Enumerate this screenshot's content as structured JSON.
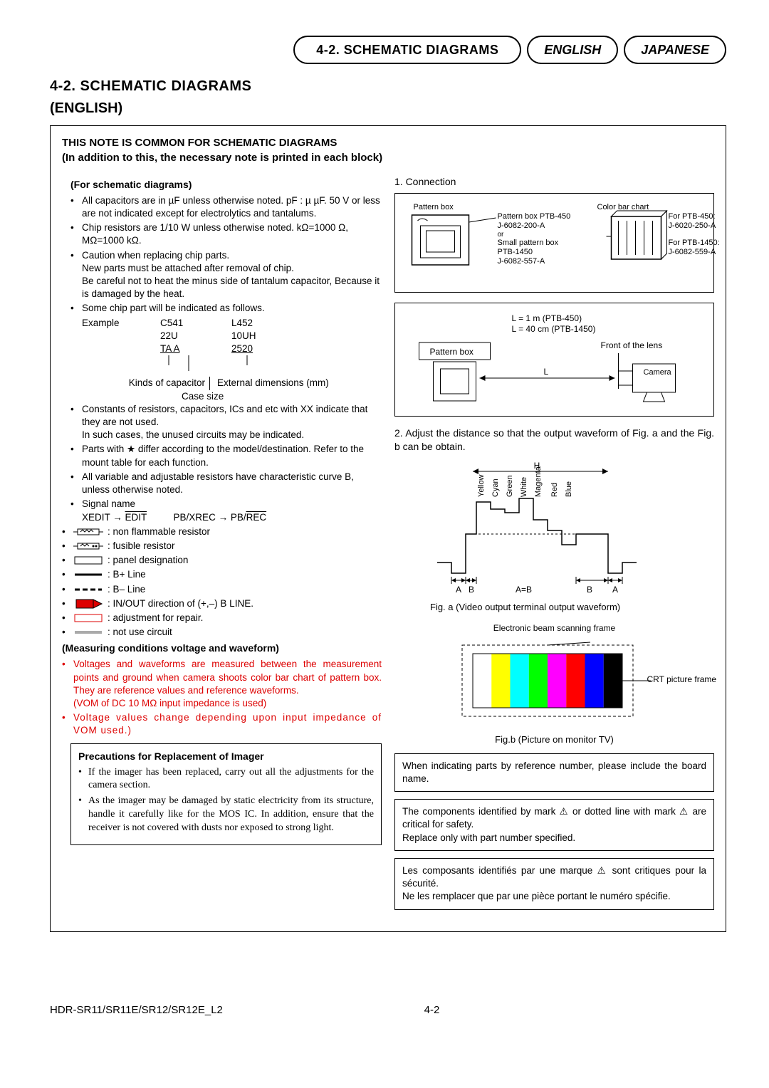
{
  "header": {
    "main_pill": "4-2. SCHEMATIC DIAGRAMS",
    "lang1": "ENGLISH",
    "lang2": "JAPANESE"
  },
  "title": "4-2.  SCHEMATIC  DIAGRAMS",
  "title_sub": "(ENGLISH)",
  "note_head": "THIS NOTE IS COMMON FOR SCHEMATIC DIAGRAMS",
  "note_sub": "(In addition to this, the necessary note is printed in each block)",
  "left": {
    "head1": "(For schematic diagrams)",
    "b1": "All capacitors are in µF unless otherwise noted. pF : µ µF.  50 V or less are not indicated except for electrolytics and tantalums.",
    "b2": "Chip resistors are 1/10 W unless otherwise noted. kΩ=1000 Ω, MΩ=1000 kΩ.",
    "b3a": "Caution when replacing chip parts.",
    "b3b": "New parts must be attached after removal of chip.",
    "b3c": "Be careful not to heat the minus side of tantalum capacitor, Because it is damaged by the heat.",
    "b4": "Some chip part will be indicated as follows.",
    "ex_label": "Example",
    "ex_c": "C541",
    "ex_l": "L452",
    "ex_22": "22U",
    "ex_10": "10UH",
    "ex_ta": "TA  A",
    "ex_25": "2520",
    "ex_k1": "Kinds of capacitor",
    "ex_k2": "External dimensions (mm)",
    "ex_k3": "Case size",
    "b5a": "Constants of resistors, capacitors, ICs and etc with XX indicate that they are not used.",
    "b5b": "In such cases, the unused circuits may be indicated.",
    "b6": "Parts with ★ differ according to the model/destination. Refer to the mount table for each function.",
    "b7": "All variable and adjustable resistors have characteristic curve B, unless otherwise noted.",
    "b8": "Signal name",
    "b8a": "XEDIT → ",
    "b8a2": "EDIT",
    "b8b": "PB/XREC → PB/",
    "b8b2": "REC",
    "b9": ": non flammable resistor",
    "b10": ": fusible resistor",
    "b11": ": panel designation",
    "b12": ": B+ Line",
    "b13": ": B– Line",
    "b14": ": IN/OUT direction of (+,–) B LINE.",
    "b15": ": adjustment for repair.",
    "b16": ": not use circuit",
    "meas_head": "(Measuring conditions voltage and waveform)",
    "m1": "Voltages and waveforms are measured between the measurement points and ground when camera shoots color bar chart of pattern box. They are reference values and reference waveforms.",
    "m1b": "(VOM of DC 10 MΩ input impedance is used)",
    "m2": "Voltage values change depending upon input impedance of VOM used.)",
    "prec_head": "Precautions for Replacement of Imager",
    "p1": "If the imager has been replaced, carry out all the adjustments for the camera section.",
    "p2": "As the imager may be damaged by static electricity from its structure, handle it carefully like for the MOS IC. In addition, ensure that the receiver is not covered with dusts nor exposed to strong light."
  },
  "right": {
    "n1": "1.  Connection",
    "d1_pattern_box": "Pattern box",
    "d1_color_chart": "Color bar chart",
    "d1_pb450": "Pattern box PTB-450",
    "d1_j1": "J-6082-200-A",
    "d1_or": "or",
    "d1_small": "Small pattern box",
    "d1_ptb1450": "PTB-1450",
    "d1_j2": "J-6082-557-A",
    "d1_for450": "For PTB-450:",
    "d1_j3": "J-6020-250-A",
    "d1_for1450": "For PTB-1450:",
    "d1_j4": "J-6082-559-A",
    "d2_l1": "L = 1 m (PTB-450)",
    "d2_l2": "L = 40 cm (PTB-1450)",
    "d2_pb": "Pattern box",
    "d2_front": "Front of the lens",
    "d2_L": "L",
    "d2_cam": "Camera",
    "n2": "2.  Adjust the distance so that the output waveform of Fig. a and the Fig. b can be obtain.",
    "colors": [
      "Yellow",
      "Cyan",
      "Green",
      "White",
      "Magenta",
      "Red",
      "Blue"
    ],
    "wave_H": "H",
    "wave_A": "A",
    "wave_B": "B",
    "wave_AB": "A=B",
    "figa": "Fig. a (Video output terminal output waveform)",
    "ebf": "Electronic beam scanning frame",
    "crt": "CRT picture frame",
    "figb": "Fig.b (Picture on monitor TV)",
    "bar_colors": [
      "#ffffff",
      "#ffff00",
      "#00ffff",
      "#00ff00",
      "#ff00ff",
      "#ff0000",
      "#0000ff",
      "#000000"
    ],
    "box1": "When indicating parts by reference number, please include the board name.",
    "box2": "The components identified by mark ⚠ or dotted line with mark ⚠ are critical for safety.\nReplace only with part number specified.",
    "box3": "Les composants identifiés par une marque ⚠ sont critiques pour la sécurité.\nNe les remplacer que par une pièce portant le numéro spécifie."
  },
  "footer": {
    "left": "HDR-SR11/SR11E/SR12/SR12E_L2",
    "center": "4-2"
  }
}
